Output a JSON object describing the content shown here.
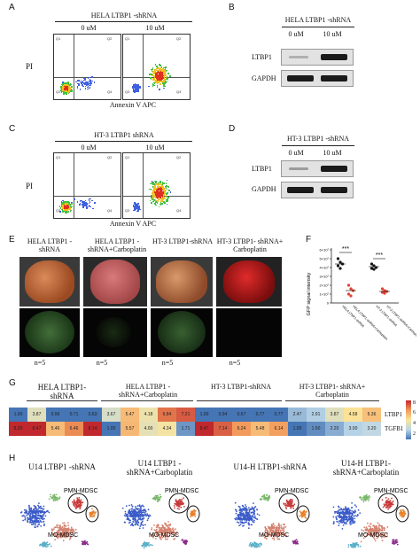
{
  "panels": {
    "A": {
      "letter": "A",
      "title": "HELA LTBP1 -shRNA",
      "cond1": "0 uM",
      "cond2": "10 uM",
      "ylabel": "PI",
      "xlabel": "Annexin V APC"
    },
    "B": {
      "letter": "B",
      "title": "HELA LTBP1 -shRNA",
      "cond1": "0 uM",
      "cond2": "10 uM",
      "row1": "LTBP1",
      "row2": "GAPDH"
    },
    "C": {
      "letter": "C",
      "title": "HT-3 LTBP1 shRNA",
      "cond1": "0 uM",
      "cond2": "10 uM",
      "ylabel": "PI",
      "xlabel": "Annexin V APC"
    },
    "D": {
      "letter": "D",
      "title": "HT-3 LTBP1 -shRNA",
      "cond1": "0 uM",
      "cond2": "10 uM",
      "row1": "LTBP1",
      "row2": "GAPDH"
    },
    "E": {
      "letter": "E",
      "groups": [
        "HELA LTBP1 -shRNA",
        "HELA LTBP1 - shRNA+Carboplatin",
        "HT-3 LTBP1-shRNA",
        "HT-3 LTBP1- shRNA+ Carboplatin"
      ],
      "n_labels": [
        "n=5",
        "n=5",
        "n=5",
        "n=5"
      ]
    },
    "F": {
      "letter": "F",
      "ylabel": "GFP signal intensity",
      "sig1": "***",
      "sig2": "***",
      "yticks": [
        "6×10⁷",
        "5×10⁷",
        "4×10⁷",
        "3×10⁷",
        "2×10⁷",
        "1×10⁷",
        "0"
      ],
      "categories": [
        "HELA LTBP1-shRNA",
        "HELA LTBP1-shRNA+Carboplatin",
        "HT-3 LTBP1-shRNA",
        "HT-3 LTBP1-shRNA+Carboplatin"
      ]
    },
    "G": {
      "letter": "G",
      "groups": [
        "HELA LTBP1-shRNA",
        "HELA LTBP1 - shRNA+Carboplatin",
        "HT-3 LTBP1-shRNA",
        "HT-3 LTBP1- shRNA+ Carboplatin"
      ],
      "rows": [
        "LTBP1",
        "TGFB1"
      ],
      "legend_ticks": [
        "8",
        "6",
        "4",
        "2"
      ]
    },
    "H": {
      "letter": "H",
      "titles": [
        "U14 LTBP1 -shRNA",
        "U14 LTBP1 - shRNA+Carboplatin",
        "U14-H LTBP1-shRNA",
        "U14-H LTBP1- shRNA+Carboplatin"
      ],
      "pmn_label": "PMN-MDSC",
      "mo_label": "MO-MDSC"
    }
  },
  "flow_quadrant_labels": {
    "q1": "Q1",
    "q2": "Q2",
    "q3": "Q3",
    "q4": "Q4"
  },
  "chart_data": {
    "type": "heatmap",
    "rows": [
      "LTBP1",
      "TGFB1"
    ],
    "values": [
      [
        1.0,
        3.87,
        0.96,
        0.71,
        0.63,
        3.67,
        5.47,
        4.18,
        6.84,
        7.21,
        1.0,
        0.94,
        0.67,
        0.77,
        0.77,
        2.47,
        2.91,
        3.87,
        4.58,
        5.36
      ],
      [
        8.2,
        8.47,
        5.46,
        6.46,
        8.14,
        1.0,
        5.57,
        4.0,
        4.34,
        1.71,
        8.47,
        7.14,
        6.24,
        5.48,
        6.14,
        1.0,
        1.5,
        2.2,
        3.0,
        3.2
      ]
    ],
    "color_range": [
      1,
      8
    ]
  }
}
